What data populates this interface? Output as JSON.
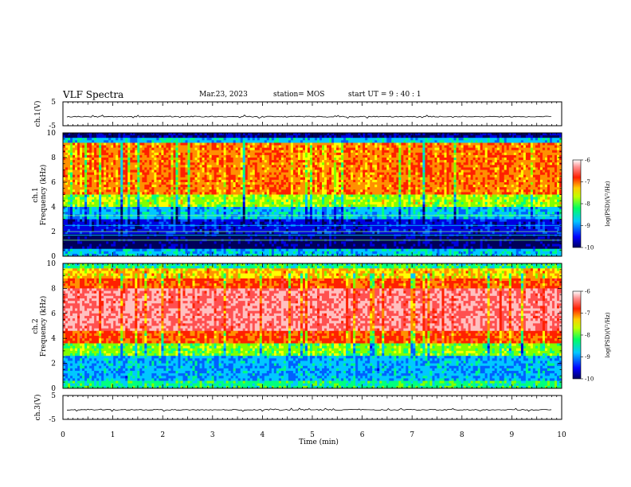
{
  "header": {
    "title": "VLF Spectra",
    "date": "Mar.23, 2023",
    "station": "station= MOS",
    "start": "start  UT =   9 : 40 : 1"
  },
  "chart_data": [
    {
      "type": "line",
      "panel": "ch1-waveform",
      "ylabel": "ch.1(V)",
      "ylim": [
        -5,
        5
      ],
      "yticks": [
        "5",
        "-5"
      ],
      "xlim": [
        0,
        10
      ],
      "series": [
        {
          "values_approx_constant": -1.2
        }
      ]
    },
    {
      "type": "heatmap",
      "panel": "ch1-spectrogram",
      "ylabel_line1": "ch.1",
      "ylabel_line2": "Frequency (kHz)",
      "ylim": [
        0,
        10
      ],
      "yticks": [
        "0",
        "2",
        "4",
        "6",
        "8",
        "10"
      ],
      "xlim": [
        0,
        10
      ],
      "colorbar": {
        "label": "log(PSD)(V²/Hz)",
        "range": [
          -10,
          -6
        ],
        "ticks": [
          "-6",
          "-7",
          "-8",
          "-9",
          "-10"
        ]
      }
    },
    {
      "type": "heatmap",
      "panel": "ch2-spectrogram",
      "ylabel_line1": "ch.2",
      "ylabel_line2": "Frequency (kHz)",
      "ylim": [
        0,
        10
      ],
      "yticks": [
        "0",
        "2",
        "4",
        "6",
        "8",
        "10"
      ],
      "xlim": [
        0,
        10
      ],
      "colorbar": {
        "label": "log(PSD)(V²/Hz)",
        "range": [
          -10,
          -6
        ],
        "ticks": [
          "-6",
          "-7",
          "-8",
          "-9",
          "-10"
        ]
      }
    },
    {
      "type": "line",
      "panel": "ch3-waveform",
      "ylabel": "ch.3(V)",
      "ylim": [
        -5,
        5
      ],
      "yticks": [
        "5",
        "-5"
      ],
      "xlim": [
        0,
        10
      ],
      "xlabel": "Time  (min)",
      "xticks": [
        "0",
        "1",
        "2",
        "3",
        "4",
        "5",
        "6",
        "7",
        "8",
        "9",
        "10"
      ],
      "series": [
        {
          "values_approx_constant": -1.0
        }
      ]
    }
  ],
  "colors": {
    "spectrum": [
      "#00007a",
      "#0000ff",
      "#00c8ff",
      "#00ff80",
      "#a0ff00",
      "#ffff00",
      "#ff8000",
      "#ff0000",
      "#ffffff"
    ]
  }
}
